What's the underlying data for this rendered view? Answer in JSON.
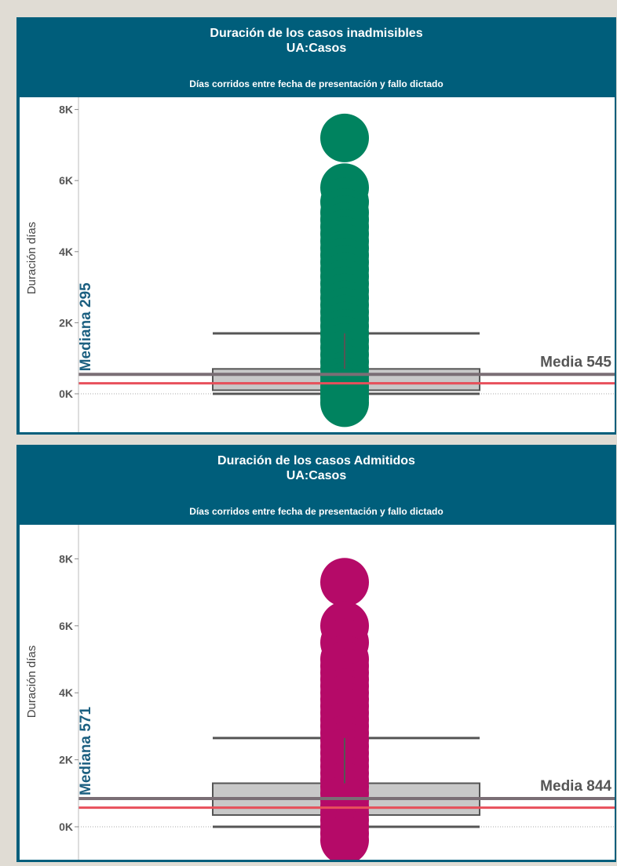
{
  "chart_data": [
    {
      "type": "box-and-dot",
      "title": "Duración de los casos inadmisibles",
      "subtitle": "UA:Casos",
      "caption": "Días corridos entre fecha de presentación y fallo dictado",
      "ylabel": "Duración días",
      "y_ticks": [
        "0K",
        "2K",
        "4K",
        "6K",
        "8K"
      ],
      "ylim": [
        -900,
        8300
      ],
      "color": "#00835f",
      "points": [
        7200,
        5800,
        5400,
        5100,
        4900,
        4700,
        4500,
        4300,
        4100,
        3900,
        3700,
        3500,
        3300,
        3100,
        2900,
        2700,
        2500,
        2300,
        2100,
        1900,
        1700,
        1500,
        1300,
        1100,
        900,
        700,
        500,
        350,
        200,
        60,
        -100,
        -250
      ],
      "box": {
        "whisker_low": 0,
        "q1": 100,
        "median": 295,
        "q3": 700,
        "whisker_high": 1700
      },
      "mean": 545,
      "median": 295,
      "median_label": "Mediana  295",
      "mean_label": "Media 545"
    },
    {
      "type": "box-and-dot",
      "title": "Duración de los casos Admitidos",
      "subtitle": "UA:Casos",
      "caption": "Días corridos entre fecha de presentación y fallo dictado",
      "ylabel": "Duración días",
      "y_ticks": [
        "0K",
        "2K",
        "4K",
        "6K",
        "8K"
      ],
      "ylim": [
        -1000,
        8300
      ],
      "color": "#b50a68",
      "points": [
        7300,
        6000,
        5500,
        5000,
        4800,
        4600,
        4400,
        4200,
        4000,
        3800,
        3600,
        3400,
        3200,
        3000,
        2800,
        2600,
        2400,
        2200,
        2000,
        1800,
        1600,
        1400,
        1200,
        1000,
        800,
        600,
        400,
        200,
        0,
        -200,
        -400
      ],
      "box": {
        "whisker_low": 0,
        "q1": 350,
        "median": 571,
        "q3": 1300,
        "whisker_high": 2650
      },
      "mean": 844,
      "median": 571,
      "median_label": "Mediana 571",
      "mean_label": "Media 844"
    }
  ]
}
